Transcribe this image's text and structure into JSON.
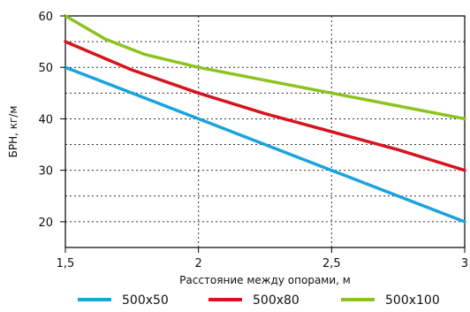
{
  "chart_data": {
    "type": "line",
    "title": "",
    "xlabel": "Расстояние между опорами, м",
    "ylabel": "БРН, кг/м",
    "xlim": [
      1.5,
      3
    ],
    "ylim": [
      15,
      60
    ],
    "x_ticks": [
      1.5,
      2,
      2.5,
      3
    ],
    "x_tick_labels": [
      "1,5",
      "2",
      "2,5",
      "3"
    ],
    "y_ticks": [
      20,
      30,
      40,
      50,
      60
    ],
    "y_tick_labels": [
      "20",
      "30",
      "40",
      "50",
      "60"
    ],
    "grid": true,
    "legend_position": "bottom",
    "series": [
      {
        "name": "500x50",
        "color": "#1AA3DC",
        "points": [
          [
            1.5,
            50
          ],
          [
            2,
            40
          ],
          [
            2.5,
            30
          ],
          [
            3,
            20
          ]
        ]
      },
      {
        "name": "500x80",
        "color": "#D7141E",
        "points": [
          [
            1.5,
            55
          ],
          [
            1.75,
            49.5
          ],
          [
            2,
            45
          ],
          [
            2.25,
            41
          ],
          [
            2.5,
            37.5
          ],
          [
            2.75,
            34
          ],
          [
            3,
            30
          ]
        ]
      },
      {
        "name": "500x100",
        "color": "#8DC21F",
        "points": [
          [
            1.5,
            60
          ],
          [
            1.65,
            55.5
          ],
          [
            1.8,
            52.5
          ],
          [
            2,
            50
          ],
          [
            2.25,
            47.5
          ],
          [
            2.5,
            45
          ],
          [
            2.75,
            42.5
          ],
          [
            3,
            40
          ]
        ]
      }
    ]
  }
}
